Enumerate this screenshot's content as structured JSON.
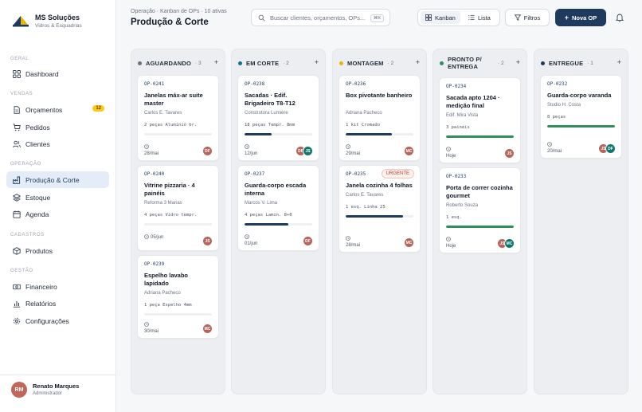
{
  "brand": {
    "name": "MS Soluções",
    "subtitle": "Vidros & Esquadrias"
  },
  "sidebar": {
    "sections": [
      {
        "label": "GERAL",
        "items": [
          {
            "label": "Dashboard",
            "icon": "grid-icon"
          }
        ]
      },
      {
        "label": "VENDAS",
        "items": [
          {
            "label": "Orçamentos",
            "icon": "document-icon",
            "badge": "12"
          },
          {
            "label": "Pedidos",
            "icon": "cart-icon"
          },
          {
            "label": "Clientes",
            "icon": "users-icon"
          }
        ]
      },
      {
        "label": "OPERAÇÃO",
        "items": [
          {
            "label": "Produção & Corte",
            "icon": "factory-icon",
            "active": true
          },
          {
            "label": "Estoque",
            "icon": "layers-icon"
          },
          {
            "label": "Agenda",
            "icon": "calendar-icon"
          }
        ]
      },
      {
        "label": "CADASTROS",
        "items": [
          {
            "label": "Produtos",
            "icon": "box-icon"
          }
        ]
      },
      {
        "label": "GESTÃO",
        "items": [
          {
            "label": "Financeiro",
            "icon": "banknote-icon"
          },
          {
            "label": "Relatórios",
            "icon": "bar-chart-icon"
          },
          {
            "label": "Configurações",
            "icon": "gear-icon"
          }
        ]
      }
    ]
  },
  "user": {
    "initials": "RM",
    "name": "Renato Marques",
    "role": "Administrador"
  },
  "header": {
    "breadcrumb": "Operação · Kanban de OPs · 10 ativas",
    "title": "Produção & Corte",
    "search_placeholder": "Buscar clientes, orçamentos, OPs...",
    "search_shortcut": "⌘K",
    "view_kanban": "Kanban",
    "view_list": "Lista",
    "filters": "Filtros",
    "new_op": "Nova OP"
  },
  "colors": {
    "navy": "#1e3a5f",
    "green": "#2f8f5b",
    "accent_teal": "#0e7490",
    "accent_yellow": "#eab308",
    "accent_gray": "#6b7280",
    "avatar_rust": "#b5655a",
    "avatar_teal": "#0f766e"
  },
  "columns": [
    {
      "title": "AGUARDANDO",
      "count": "3",
      "dot": "#6b7280",
      "cards": [
        {
          "code": "OP-0241",
          "title": "Janelas máx-ar suite master",
          "client": "Carlos E. Tavares",
          "meta": "2 peças  Alumínio br.",
          "progress": 0,
          "bar": "#1e3a5f",
          "date": "28/mai",
          "avatars": [
            "DF"
          ],
          "urgent": ""
        },
        {
          "code": "OP-0240",
          "title": "Vitrine pizzaria · 4 painéis",
          "client": "Reforma 3 Marias",
          "meta": "4 peças  Vidro tempr.",
          "progress": 0,
          "bar": "#1e3a5f",
          "date": "05/jun",
          "avatars": [
            "JS"
          ],
          "urgent": ""
        },
        {
          "code": "OP-0239",
          "title": "Espelho lavabo lapidado",
          "client": "Adriana Pacheco",
          "meta": "1 peça  Espelho 4mm",
          "progress": 0,
          "bar": "#1e3a5f",
          "date": "30/mai",
          "avatars": [
            "MC"
          ],
          "urgent": ""
        }
      ]
    },
    {
      "title": "EM CORTE",
      "count": "2",
      "dot": "#0e7490",
      "cards": [
        {
          "code": "OP-0238",
          "title": "Sacadas · Edif. Brigadeiro T8-T12",
          "client": "Construtora Lumière",
          "meta": "18 peças  Tempr. 8mm",
          "progress": 0.4,
          "bar": "#1e3a5f",
          "date": "12/jun",
          "avatars": [
            "DF",
            "JS"
          ],
          "urgent": ""
        },
        {
          "code": "OP-0237",
          "title": "Guarda-corpo escada interna",
          "client": "Marcos V. Lima",
          "meta": "4 peças  Lamin. 8+8",
          "progress": 0.65,
          "bar": "#1e3a5f",
          "date": "01/jun",
          "avatars": [
            "DF"
          ],
          "urgent": ""
        }
      ]
    },
    {
      "title": "MONTAGEM",
      "count": "2",
      "dot": "#eab308",
      "cards": [
        {
          "code": "OP-0236",
          "title": "Box pivotante banheiro",
          "client": "Adriana Pacheco",
          "meta": "1 kit  Cromado",
          "progress": 0.68,
          "bar": "#1e3a5f",
          "date": "29/mai",
          "avatars": [
            "MC"
          ],
          "urgent": ""
        },
        {
          "code": "OP-0235",
          "title": "Janela cozinha 4 folhas",
          "client": "Carlos E. Tavares",
          "meta": "1 esq.  Linha 25",
          "progress": 0.85,
          "bar": "#1e3a5f",
          "date": "28/mai",
          "avatars": [
            "MC"
          ],
          "urgent": "URGENTE"
        }
      ]
    },
    {
      "title": "PRONTO P/ ENTREGA",
      "count": "2",
      "dot": "#2f8f5b",
      "cards": [
        {
          "code": "OP-0234",
          "title": "Sacada apto 1204 · medição final",
          "client": "Edif. Mira Vista",
          "meta": "3 painéis",
          "progress": 1,
          "bar": "#2f8f5b",
          "date": "Hoje",
          "avatars": [
            "JS"
          ],
          "urgent": ""
        },
        {
          "code": "OP-0233",
          "title": "Porta de correr cozinha gourmet",
          "client": "Roberto Souza",
          "meta": "1 esq.",
          "progress": 1,
          "bar": "#2f8f5b",
          "date": "Hoje",
          "avatars": [
            "JS",
            "MC"
          ],
          "urgent": ""
        }
      ]
    },
    {
      "title": "ENTREGUE",
      "count": "1",
      "dot": "#1e3a5f",
      "cards": [
        {
          "code": "OP-0232",
          "title": "Guarda-corpo varanda",
          "client": "Studio H. Costa",
          "meta": "8 peças",
          "progress": 1,
          "bar": "#2f8f5b",
          "date": "20/mai",
          "avatars": [
            "JS",
            "DF"
          ],
          "urgent": ""
        }
      ]
    }
  ],
  "avatar_colors": {
    "DF": "#b5655a",
    "JS": "#b5655a",
    "MC": "#b5655a",
    "JS2": "#0f766e",
    "MC2": "#0f766e",
    "DF2": "#0f766e"
  }
}
